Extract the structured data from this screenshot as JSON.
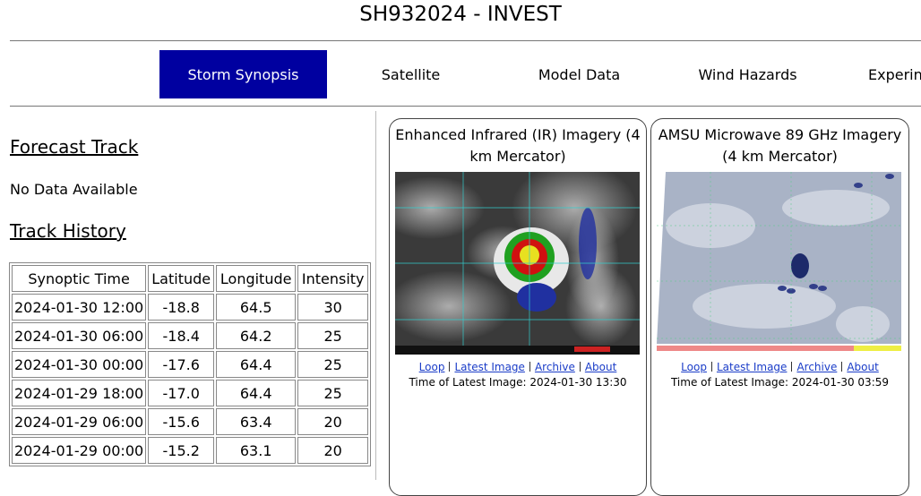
{
  "header": {
    "title": "SH932024 - INVEST"
  },
  "nav": {
    "tabs": [
      "Storm Synopsis",
      "Satellite",
      "Model Data",
      "Wind Hazards",
      "Experin"
    ],
    "active": 0
  },
  "forecast": {
    "heading": "Forecast Track",
    "text": "No Data Available"
  },
  "history": {
    "heading": "Track History",
    "table": {
      "columns": [
        "Synoptic Time",
        "Latitude",
        "Longitude",
        "Intensity"
      ],
      "rows": [
        [
          "2024-01-30 12:00",
          "-18.8",
          "64.5",
          "30"
        ],
        [
          "2024-01-30 06:00",
          "-18.4",
          "64.2",
          "25"
        ],
        [
          "2024-01-30 00:00",
          "-17.6",
          "64.4",
          "25"
        ],
        [
          "2024-01-29 18:00",
          "-17.0",
          "64.4",
          "25"
        ],
        [
          "2024-01-29 06:00",
          "-15.6",
          "63.4",
          "20"
        ],
        [
          "2024-01-29 00:00",
          "-15.2",
          "63.1",
          "20"
        ]
      ]
    }
  },
  "panels": [
    {
      "title": "Enhanced Infrared (IR) Imagery (4 km Mercator)",
      "links": [
        "Loop",
        "Latest Image",
        "Archive",
        "About"
      ],
      "time": "Time of Latest Image: 2024-01-30 13:30"
    },
    {
      "title": "AMSU Microwave 89 GHz Imagery (4 km Mercator)",
      "links": [
        "Loop",
        "Latest Image",
        "Archive",
        "About"
      ],
      "time": "Time of Latest Image: 2024-01-30 03:59"
    }
  ]
}
